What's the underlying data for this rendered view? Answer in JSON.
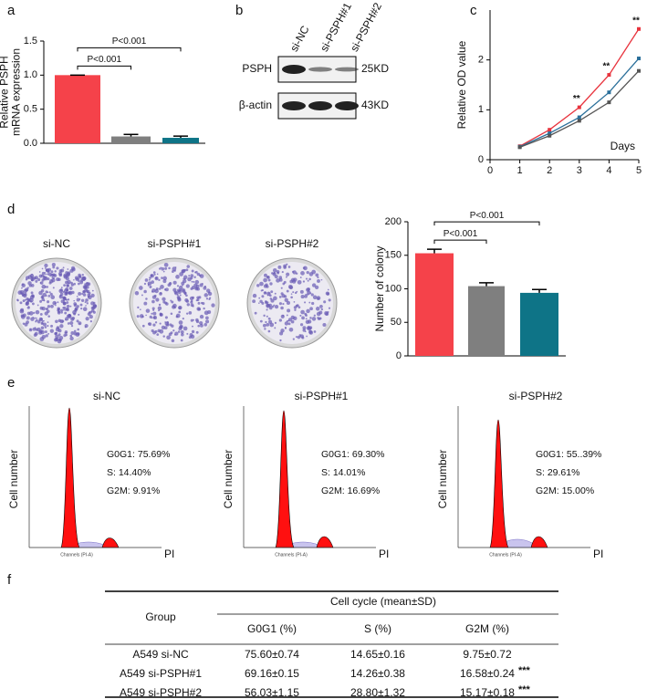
{
  "panel_labels": [
    "a",
    "b",
    "c",
    "d",
    "e",
    "f"
  ],
  "chart_data": [
    {
      "type": "bar",
      "ylabel": [
        "Relative PSPH",
        "mRNA expression"
      ],
      "categories": [
        null,
        null,
        null
      ],
      "values": [
        1.0,
        0.1,
        0.08
      ],
      "errors": [
        0,
        0.03,
        0.025
      ],
      "colors": [
        "#f5424a",
        "#7f7f7f",
        "#0e7487"
      ],
      "ylim": [
        0,
        1.5
      ],
      "yticks": [
        {
          "value": 0,
          "label": "0.0"
        },
        {
          "value": 0.5,
          "label": "0.5"
        },
        {
          "value": 1,
          "label": "1.0"
        },
        {
          "value": 1.5,
          "label": "1.5"
        }
      ],
      "annotations": [
        "P<0.001",
        "P<0.001"
      ]
    },
    {
      "type": "line",
      "ylabel": "Relative OD value",
      "xlabel": "Days",
      "x": [
        1,
        2,
        3,
        4,
        5
      ],
      "xlim": [
        0,
        5
      ],
      "xticks": [
        0,
        1,
        2,
        3,
        4,
        5
      ],
      "ylim": [
        0,
        3
      ],
      "yticks": [
        0,
        1,
        2
      ],
      "series": [
        {
          "color": "#e8333d",
          "values": [
            0.27,
            0.6,
            1.05,
            1.7,
            2.62
          ]
        },
        {
          "color": "#2a6f9a",
          "values": [
            0.26,
            0.53,
            0.85,
            1.35,
            2.03
          ]
        },
        {
          "color": "#555555",
          "values": [
            0.25,
            0.48,
            0.78,
            1.15,
            1.78
          ]
        }
      ],
      "annotations": [
        "**",
        "**",
        "**"
      ]
    },
    {
      "type": "bar",
      "ylabel": "Number of colony",
      "categories": [
        null,
        null,
        null
      ],
      "values": [
        153,
        104,
        94
      ],
      "errors": [
        6,
        5,
        5
      ],
      "colors": [
        "#f5424a",
        "#7f7f7f",
        "#0e7487"
      ],
      "ylim": [
        0,
        200
      ],
      "yticks": [
        0,
        50,
        100,
        150,
        200
      ],
      "annotations": [
        "P<0.001",
        "P<0.001"
      ]
    }
  ],
  "blot": {
    "columns": [
      "si-NC",
      "si-PSPH#1",
      "si-PSPH#2"
    ],
    "rows": [
      {
        "label": "PSPH",
        "size": "25KD"
      },
      {
        "label": "β-actin",
        "size": "43KD"
      }
    ]
  },
  "colony": {
    "labels": [
      "si-NC",
      "si-PSPH#1",
      "si-PSPH#2"
    ]
  },
  "flow": {
    "ylabel": "Cell number",
    "xlabel": "PI",
    "axis_text": "Channels (PI-A)",
    "panels": [
      {
        "title": "si-NC",
        "stats": [
          "G0G1: 75.69%",
          "S: 14.40%",
          "G2M: 9.91%"
        ]
      },
      {
        "title": "si-PSPH#1",
        "stats": [
          "G0G1: 69.30%",
          "S: 14.01%",
          "G2M: 16.69%"
        ]
      },
      {
        "title": "si-PSPH#2",
        "stats": [
          "G0G1: 55..39%",
          "S: 29.61%",
          "G2M: 15.00%"
        ]
      }
    ]
  },
  "table": {
    "group_header": "Group",
    "span_header": "Cell cycle (mean±SD)",
    "columns": [
      "G0G1 (%)",
      "S (%)",
      "G2M (%)"
    ],
    "rows": [
      [
        "A549 si-NC",
        "75.60±0.74",
        "14.65±0.16",
        "9.75±0.72"
      ],
      [
        "A549 si-PSPH#1",
        "69.16±0.15",
        "14.26±0.38",
        "16.58±0.24"
      ],
      [
        "A549 si-PSPH#2",
        "56.03±1.15",
        "28.80±1.32",
        "15.17±0.18"
      ]
    ],
    "significance": [
      null,
      "***",
      "***"
    ]
  }
}
